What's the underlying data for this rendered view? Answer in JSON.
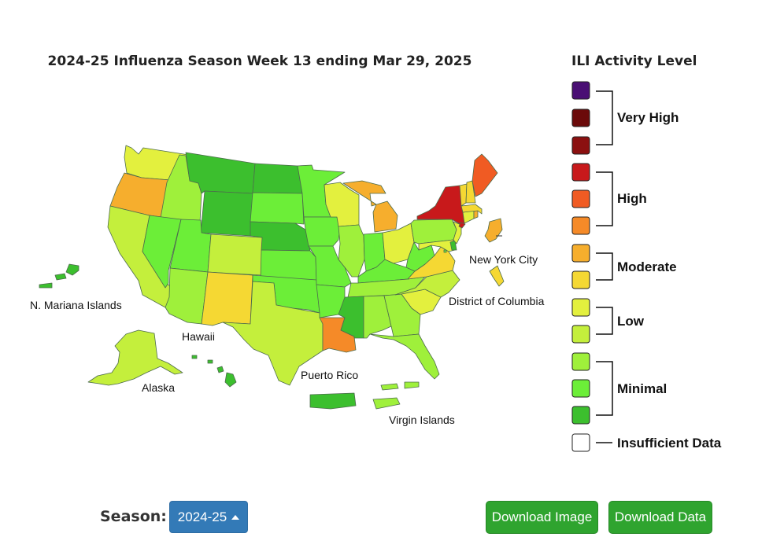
{
  "map": {
    "title": "2024-25 Influenza Season Week 13 ending Mar 29, 2025",
    "labels": {
      "nmi": "N. Mariana Islands",
      "hawaii": "Hawaii",
      "alaska": "Alaska",
      "puerto_rico": "Puerto Rico",
      "virgin_islands": "Virgin Islands",
      "nyc": "New York City",
      "dc": "District of Columbia"
    },
    "colors": {
      "very_high_1": "#4a0f74",
      "very_high_2": "#6b0a0a",
      "very_high_3": "#8b1010",
      "high_1": "#c8191b",
      "high_2": "#f05b23",
      "high_3": "#f58a28",
      "moderate_1": "#f6ae2d",
      "moderate_2": "#f5d833",
      "low_1": "#e3f03e",
      "low_2": "#c4ef3c",
      "minimal_1": "#9ff03b",
      "minimal_2": "#6cee38",
      "minimal_3": "#3cbf2e",
      "insufficient": "#ffffff"
    }
  },
  "legend": {
    "title": "ILI Activity Level",
    "groups": [
      "Very High",
      "High",
      "Moderate",
      "Low",
      "Minimal",
      "Insufficient Data"
    ]
  },
  "controls": {
    "season_label": "Season:",
    "season_value": "2024-25",
    "download_image": "Download Image",
    "download_data": "Download Data"
  }
}
